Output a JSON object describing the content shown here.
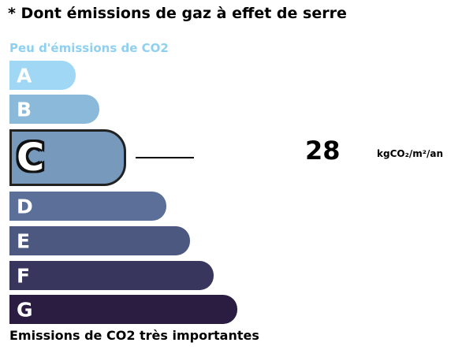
{
  "title": "* Dont émissions de gaz à effet de serre",
  "scale_top_label": "Peu d'émissions de CO2",
  "scale_bottom_label": "Emissions de CO2 très importantes",
  "colors": {
    "top_label": "#8fd0f0",
    "A": "#9fd7f5",
    "B": "#8ab9da",
    "C": "#7799bb",
    "D": "#5c6f99",
    "E": "#4c5880",
    "F": "#39365e",
    "G": "#2b1c42"
  },
  "classes": [
    {
      "letter": "A",
      "active": false
    },
    {
      "letter": "B",
      "active": false
    },
    {
      "letter": "C",
      "active": true
    },
    {
      "letter": "D",
      "active": false
    },
    {
      "letter": "E",
      "active": false
    },
    {
      "letter": "F",
      "active": false
    },
    {
      "letter": "G",
      "active": false
    }
  ],
  "current_class": "C",
  "value": "28",
  "unit": "kgCO₂/m²/an"
}
